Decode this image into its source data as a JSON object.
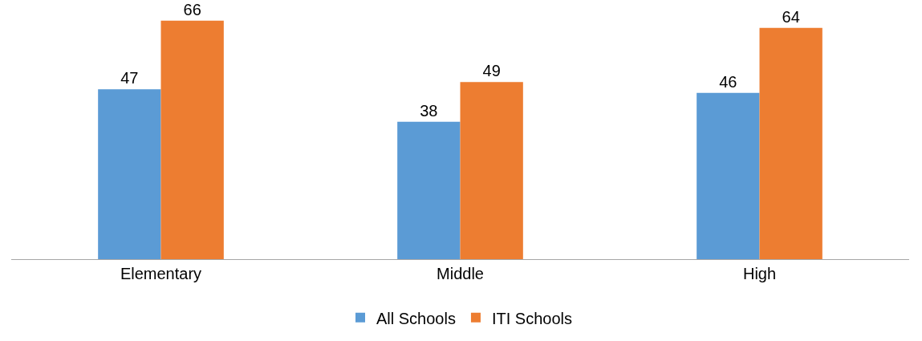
{
  "chart_data": {
    "type": "bar",
    "categories": [
      "Elementary",
      "Middle",
      "High"
    ],
    "series": [
      {
        "name": "All Schools",
        "color": "#5b9bd5",
        "values": [
          47,
          38,
          46
        ]
      },
      {
        "name": "ITI Schools",
        "color": "#ed7d31",
        "values": [
          66,
          49,
          64
        ]
      }
    ],
    "data_labels": true,
    "legend": "bottom",
    "tick_labels": "x"
  }
}
